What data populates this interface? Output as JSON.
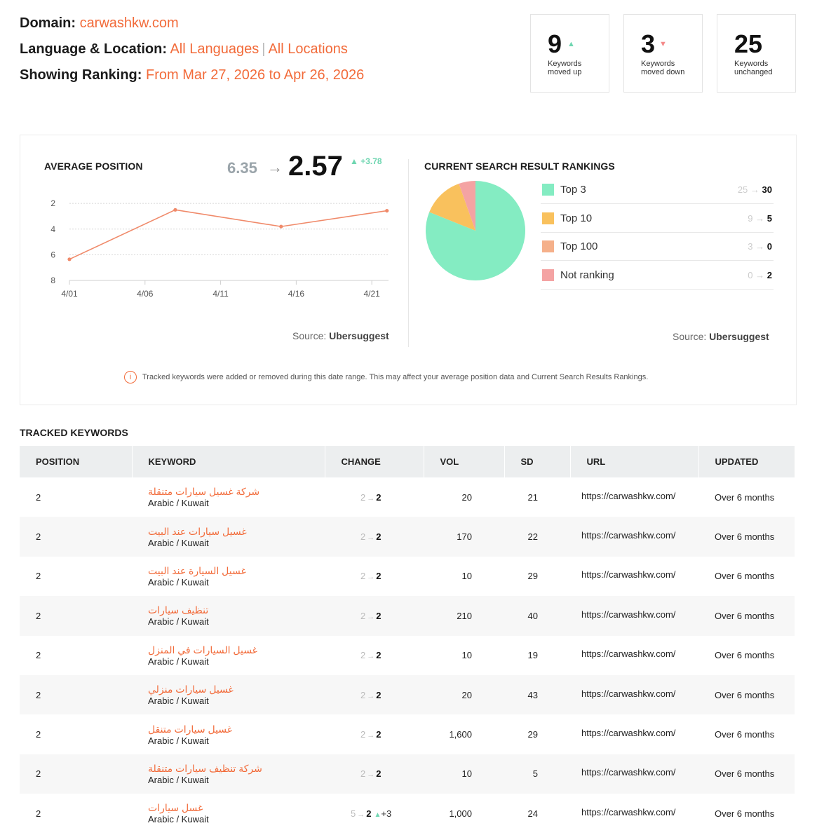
{
  "header": {
    "domain_label": "Domain:",
    "domain_value": "carwashkw.com",
    "lang_label": "Language & Location:",
    "lang_value": "All Languages",
    "loc_value": "All Locations",
    "lang_sep": "|",
    "ranking_label": "Showing Ranking:",
    "ranking_value": "From Mar 27, 2026 to Apr 26, 2026"
  },
  "stats": {
    "up": {
      "num": "9",
      "line1": "Keywords",
      "line2": "moved up"
    },
    "down": {
      "num": "3",
      "line1": "Keywords",
      "line2": "moved down"
    },
    "unchanged": {
      "num": "25",
      "line1": "Keywords",
      "line2": "unchanged"
    }
  },
  "avg": {
    "title": "AVERAGE POSITION",
    "old": "6.35",
    "arrow": "→",
    "new": "2.57",
    "delta": "+3.78",
    "source_label": "Source:",
    "source_name": "Ubersuggest"
  },
  "rankings": {
    "title": "CURRENT SEARCH RESULT RANKINGS",
    "source_label": "Source:",
    "source_name": "Ubersuggest"
  },
  "note": "Tracked keywords were added or removed during this date range. This may affect your average position data and Current Search Results Rankings.",
  "chart_data": [
    {
      "type": "line",
      "title": "AVERAGE POSITION",
      "x_ticks": [
        "4/01",
        "4/06",
        "4/11",
        "4/16",
        "4/21"
      ],
      "y_ticks": [
        2,
        4,
        6,
        8
      ],
      "ylim": [
        1.5,
        8
      ],
      "y_inverted": true,
      "x": [
        0,
        7,
        14,
        21
      ],
      "x_dates": [
        "4/01",
        "4/08",
        "4/15",
        "4/22"
      ],
      "y": [
        6.35,
        2.5,
        3.8,
        2.57
      ],
      "color": "#f08a6a",
      "grid": true
    },
    {
      "type": "pie",
      "title": "CURRENT SEARCH RESULT RANKINGS",
      "slices": [
        {
          "label": "Top 3",
          "from": 25,
          "value": 30,
          "color": "#84ecc2"
        },
        {
          "label": "Top 10",
          "from": 9,
          "value": 5,
          "color": "#f9c15d"
        },
        {
          "label": "Top 100",
          "from": 3,
          "value": 0,
          "color": "#f5b08a"
        },
        {
          "label": "Not ranking",
          "from": 0,
          "value": 2,
          "color": "#f4a3a3"
        }
      ]
    }
  ],
  "table": {
    "title": "TRACKED KEYWORDS",
    "columns": [
      "POSITION",
      "KEYWORD",
      "CHANGE",
      "VOL",
      "SD",
      "URL",
      "UPDATED"
    ],
    "rows": [
      {
        "pos": "2",
        "kw": "شركة غسيل سيارات متنقلة",
        "sub": "Arabic / Kuwait",
        "old": "2",
        "new": "2",
        "delta": "",
        "vol": "20",
        "sd": "21",
        "url": "https://carwashkw.com/",
        "updated": "Over 6 months"
      },
      {
        "pos": "2",
        "kw": "غسيل سيارات عند البيت",
        "sub": "Arabic / Kuwait",
        "old": "2",
        "new": "2",
        "delta": "",
        "vol": "170",
        "sd": "22",
        "url": "https://carwashkw.com/",
        "updated": "Over 6 months"
      },
      {
        "pos": "2",
        "kw": "غسيل السيارة عند البيت",
        "sub": "Arabic / Kuwait",
        "old": "2",
        "new": "2",
        "delta": "",
        "vol": "10",
        "sd": "29",
        "url": "https://carwashkw.com/",
        "updated": "Over 6 months"
      },
      {
        "pos": "2",
        "kw": "تنظيف سيارات",
        "sub": "Arabic / Kuwait",
        "old": "2",
        "new": "2",
        "delta": "",
        "vol": "210",
        "sd": "40",
        "url": "https://carwashkw.com/",
        "updated": "Over 6 months"
      },
      {
        "pos": "2",
        "kw": "غسيل السيارات في المنزل",
        "sub": "Arabic / Kuwait",
        "old": "2",
        "new": "2",
        "delta": "",
        "vol": "10",
        "sd": "19",
        "url": "https://carwashkw.com/",
        "updated": "Over 6 months"
      },
      {
        "pos": "2",
        "kw": "غسيل سيارات منزلي",
        "sub": "Arabic / Kuwait",
        "old": "2",
        "new": "2",
        "delta": "",
        "vol": "20",
        "sd": "43",
        "url": "https://carwashkw.com/",
        "updated": "Over 6 months"
      },
      {
        "pos": "2",
        "kw": "غسيل سيارات متنقل",
        "sub": "Arabic / Kuwait",
        "old": "2",
        "new": "2",
        "delta": "",
        "vol": "1,600",
        "sd": "29",
        "url": "https://carwashkw.com/",
        "updated": "Over 6 months"
      },
      {
        "pos": "2",
        "kw": "شركة تنظيف سيارات متنقلة",
        "sub": "Arabic / Kuwait",
        "old": "2",
        "new": "2",
        "delta": "",
        "vol": "10",
        "sd": "5",
        "url": "https://carwashkw.com/",
        "updated": "Over 6 months"
      },
      {
        "pos": "2",
        "kw": "غسل سيارات",
        "sub": "Arabic / Kuwait",
        "old": "5",
        "new": "2",
        "delta": "+3",
        "vol": "1,000",
        "sd": "24",
        "url": "https://carwashkw.com/",
        "updated": "Over 6 months"
      }
    ]
  }
}
